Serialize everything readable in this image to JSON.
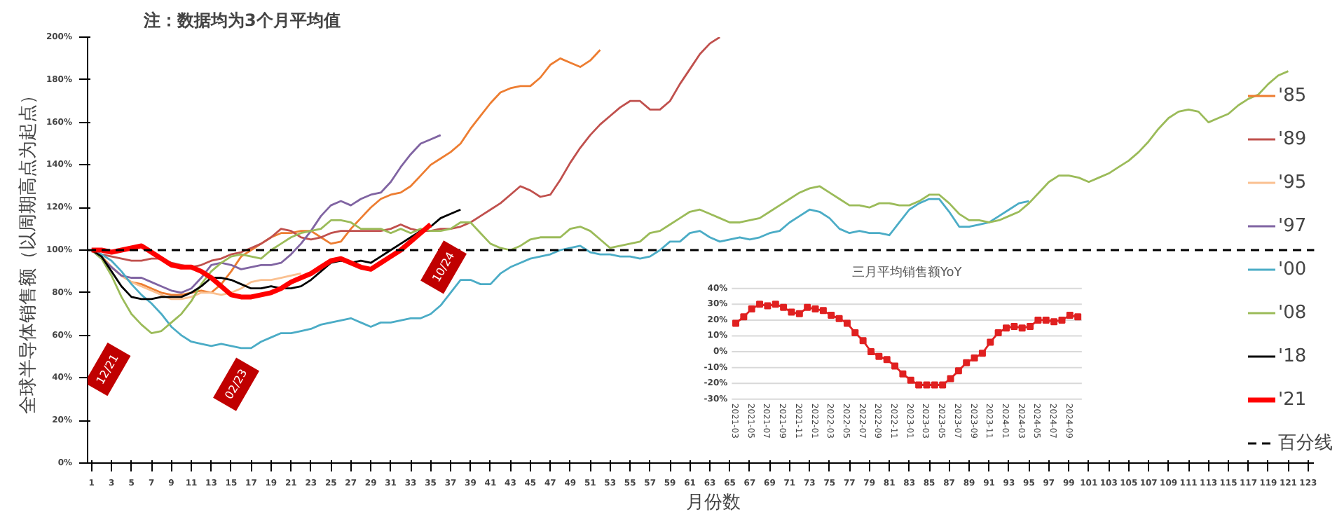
{
  "chart_data": [
    {
      "type": "line",
      "title": "注：数据均为3个月平均值",
      "xlabel": "月份数",
      "ylabel": "全球半导体销售额（以周期高点为起点）",
      "series": [
        {
          "name": "'85",
          "color": "#ed7d31",
          "x": [
            1,
            2,
            3,
            4,
            5,
            6,
            7,
            8,
            9,
            10,
            11,
            12,
            13,
            14,
            15,
            16,
            17,
            18,
            19,
            20,
            21,
            22,
            23,
            24,
            25,
            26,
            27,
            28,
            29,
            30,
            31,
            32,
            33,
            34,
            35,
            36,
            37,
            38,
            39,
            40,
            41,
            42,
            43,
            44,
            45,
            46,
            47,
            48,
            49,
            50,
            51,
            52
          ],
          "values": [
            100,
            97,
            92,
            88,
            85,
            84,
            82,
            80,
            79,
            79,
            80,
            81,
            80,
            84,
            90,
            97,
            100,
            103,
            106,
            108,
            108,
            109,
            109,
            106,
            103,
            104,
            110,
            115,
            120,
            124,
            126,
            127,
            130,
            135,
            140,
            143,
            146,
            150,
            157,
            163,
            169,
            174,
            176,
            177,
            177,
            181,
            187,
            190,
            188,
            186,
            189,
            194
          ]
        },
        {
          "name": "'89",
          "color": "#c0504d",
          "x": [
            1,
            2,
            3,
            4,
            5,
            6,
            7,
            8,
            9,
            10,
            11,
            12,
            13,
            14,
            15,
            16,
            17,
            18,
            19,
            20,
            21,
            22,
            23,
            24,
            25,
            26,
            27,
            28,
            29,
            30,
            31,
            32,
            33,
            34,
            35,
            36,
            37,
            38,
            39,
            40,
            41,
            42,
            43,
            44,
            45,
            46,
            47,
            48,
            49,
            50,
            51,
            52,
            53,
            54,
            55,
            56,
            57,
            58,
            59,
            60,
            61,
            62,
            63,
            64
          ],
          "values": [
            100,
            98,
            97,
            96,
            95,
            95,
            96,
            96,
            94,
            93,
            92,
            93,
            95,
            96,
            98,
            99,
            101,
            103,
            106,
            110,
            109,
            106,
            105,
            106,
            108,
            109,
            109,
            109,
            109,
            109,
            110,
            112,
            110,
            109,
            109,
            110,
            110,
            111,
            113,
            116,
            119,
            122,
            126,
            130,
            128,
            125,
            126,
            133,
            141,
            148,
            154,
            159,
            163,
            167,
            170,
            170,
            166,
            166,
            170,
            178,
            185,
            192,
            197,
            200
          ]
        },
        {
          "name": "'95",
          "color": "#fac090",
          "x": [
            1,
            2,
            3,
            4,
            5,
            6,
            7,
            8,
            9,
            10,
            11,
            12,
            13,
            14,
            15,
            16,
            17,
            18,
            19,
            20,
            21,
            22
          ],
          "values": [
            100,
            96,
            92,
            88,
            85,
            83,
            81,
            79,
            77,
            77,
            78,
            80,
            80,
            79,
            80,
            82,
            85,
            86,
            86,
            87,
            88,
            89
          ]
        },
        {
          "name": "'97",
          "color": "#8064a2",
          "x": [
            1,
            2,
            3,
            4,
            5,
            6,
            7,
            8,
            9,
            10,
            11,
            12,
            13,
            14,
            15,
            16,
            17,
            18,
            19,
            20,
            21,
            22,
            23,
            24,
            25,
            26,
            27,
            28,
            29,
            30,
            31,
            32,
            33,
            34,
            35,
            36
          ],
          "values": [
            100,
            96,
            92,
            88,
            87,
            87,
            85,
            83,
            81,
            80,
            82,
            87,
            93,
            94,
            93,
            91,
            92,
            93,
            93,
            94,
            98,
            103,
            109,
            116,
            121,
            123,
            121,
            124,
            126,
            127,
            132,
            139,
            145,
            150,
            152,
            154
          ]
        },
        {
          "name": "'00",
          "color": "#4bacc6",
          "x": [
            1,
            2,
            3,
            4,
            5,
            6,
            7,
            8,
            9,
            10,
            11,
            12,
            13,
            14,
            15,
            16,
            17,
            18,
            19,
            20,
            21,
            22,
            23,
            24,
            25,
            26,
            27,
            28,
            29,
            30,
            31,
            32,
            33,
            34,
            35,
            36,
            37,
            38,
            39,
            40,
            41,
            42,
            43,
            44,
            45,
            46,
            47,
            48,
            49,
            50,
            51,
            52,
            53,
            54,
            55,
            56,
            57,
            58,
            59,
            60,
            61,
            62,
            63,
            64,
            65,
            66,
            67,
            68,
            69,
            70,
            71,
            72,
            73,
            74,
            75,
            76,
            77,
            78,
            79,
            80,
            81,
            82,
            83,
            84,
            85,
            86,
            87,
            88,
            89,
            90,
            91,
            92,
            93,
            94,
            95
          ],
          "values": [
            100,
            98,
            95,
            90,
            84,
            79,
            75,
            70,
            64,
            60,
            57,
            56,
            55,
            56,
            55,
            54,
            54,
            57,
            59,
            61,
            61,
            62,
            63,
            65,
            66,
            67,
            68,
            66,
            64,
            66,
            66,
            67,
            68,
            68,
            70,
            74,
            80,
            86,
            86,
            84,
            84,
            89,
            92,
            94,
            96,
            97,
            98,
            100,
            101,
            102,
            99,
            98,
            98,
            97,
            97,
            96,
            97,
            100,
            104,
            104,
            108,
            109,
            106,
            104,
            105,
            106,
            105,
            106,
            108,
            109,
            113,
            116,
            119,
            118,
            115,
            110,
            108,
            109,
            108,
            108,
            107,
            113,
            119,
            122,
            124,
            124,
            118,
            111,
            111,
            112,
            113,
            116,
            119,
            122,
            123
          ]
        },
        {
          "name": "'08",
          "color": "#9bbb59",
          "x": [
            1,
            2,
            3,
            4,
            5,
            6,
            7,
            8,
            9,
            10,
            11,
            12,
            13,
            14,
            15,
            16,
            17,
            18,
            19,
            20,
            21,
            22,
            23,
            24,
            25,
            26,
            27,
            28,
            29,
            30,
            31,
            32,
            33,
            34,
            35,
            36,
            37,
            38,
            39,
            40,
            41,
            42,
            43,
            44,
            45,
            46,
            47,
            48,
            49,
            50,
            51,
            52,
            53,
            54,
            55,
            56,
            57,
            58,
            59,
            60,
            61,
            62,
            63,
            64,
            65,
            66,
            67,
            68,
            69,
            70,
            71,
            72,
            73,
            74,
            75,
            76,
            77,
            78,
            79,
            80,
            81,
            82,
            83,
            84,
            85,
            86,
            87,
            88,
            89,
            90,
            91,
            92,
            93,
            94,
            95,
            96,
            97,
            98,
            99,
            100,
            101,
            102,
            103,
            104,
            105,
            106,
            107,
            108,
            109,
            110,
            111,
            112,
            113,
            114,
            115,
            116,
            117,
            118,
            119,
            120,
            121
          ],
          "values": [
            100,
            96,
            88,
            78,
            70,
            65,
            61,
            62,
            66,
            70,
            76,
            84,
            90,
            94,
            97,
            98,
            97,
            96,
            100,
            103,
            106,
            108,
            109,
            110,
            114,
            114,
            113,
            110,
            110,
            110,
            108,
            110,
            108,
            110,
            109,
            109,
            110,
            113,
            113,
            108,
            103,
            101,
            100,
            102,
            105,
            106,
            106,
            106,
            110,
            111,
            109,
            105,
            101,
            102,
            103,
            104,
            108,
            109,
            112,
            115,
            118,
            119,
            117,
            115,
            113,
            113,
            114,
            115,
            118,
            121,
            124,
            127,
            129,
            130,
            127,
            124,
            121,
            121,
            120,
            122,
            122,
            121,
            121,
            123,
            126,
            126,
            122,
            117,
            114,
            114,
            113,
            114,
            116,
            118,
            122,
            127,
            132,
            135,
            135,
            134,
            132,
            134,
            136,
            139,
            142,
            146,
            151,
            157,
            162,
            165,
            166,
            165,
            160,
            162,
            164,
            168,
            171,
            173,
            178,
            182,
            184
          ]
        },
        {
          "name": "'18",
          "color": "#000000",
          "x": [
            1,
            2,
            3,
            4,
            5,
            6,
            7,
            8,
            9,
            10,
            11,
            12,
            13,
            14,
            15,
            16,
            17,
            18,
            19,
            20,
            21,
            22,
            23,
            24,
            25,
            26,
            27,
            28,
            29,
            30,
            31,
            32,
            33,
            34,
            35,
            36,
            37,
            38
          ],
          "values": [
            100,
            97,
            90,
            83,
            78,
            77,
            77,
            78,
            78,
            78,
            80,
            83,
            87,
            87,
            86,
            84,
            82,
            82,
            83,
            82,
            82,
            83,
            86,
            90,
            94,
            95,
            94,
            95,
            94,
            97,
            100,
            103,
            106,
            109,
            111,
            115,
            117,
            119
          ]
        },
        {
          "name": "'21",
          "color": "#ff0000",
          "x": [
            1,
            2,
            3,
            4,
            5,
            6,
            7,
            8,
            9,
            10,
            11,
            12,
            13,
            14,
            15,
            16,
            17,
            18,
            19,
            20,
            21,
            22,
            23,
            24,
            25,
            26,
            27,
            28,
            29,
            30,
            31,
            32,
            33,
            34,
            35
          ],
          "values": [
            100,
            100,
            99,
            100,
            101,
            102,
            99,
            96,
            93,
            92,
            92,
            90,
            87,
            83,
            79,
            78,
            78,
            79,
            80,
            82,
            85,
            87,
            89,
            92,
            95,
            96,
            94,
            92,
            91,
            94,
            97,
            100,
            104,
            108,
            112
          ]
        }
      ],
      "ref_lines": [
        {
          "axis": "y",
          "value": 100,
          "label": "百分线",
          "color": "#000000",
          "line_style": "dashed"
        }
      ],
      "annotations": [
        {
          "text": "12/21",
          "x": 2.6,
          "y": 44
        },
        {
          "text": "02/23",
          "x": 15.5,
          "y": 37
        },
        {
          "text": "10/24",
          "x": 36.3,
          "y": 92
        }
      ],
      "xlim": [
        0.6,
        123.6
      ],
      "ylim": [
        0,
        200
      ],
      "xticks": [
        1,
        3,
        5,
        7,
        9,
        11,
        13,
        15,
        17,
        19,
        21,
        23,
        25,
        27,
        29,
        31,
        33,
        35,
        37,
        39,
        41,
        43,
        45,
        47,
        49,
        51,
        53,
        55,
        57,
        59,
        61,
        63,
        65,
        67,
        69,
        71,
        73,
        75,
        77,
        79,
        81,
        83,
        85,
        87,
        89,
        91,
        93,
        95,
        97,
        99,
        101,
        103,
        105,
        107,
        109,
        111,
        113,
        115,
        117,
        119,
        121,
        123
      ],
      "yticks": [
        {
          "value": 0,
          "label": "0%"
        },
        {
          "value": 20,
          "label": "20%"
        },
        {
          "value": 40,
          "label": "40%"
        },
        {
          "value": 60,
          "label": "60%"
        },
        {
          "value": 80,
          "label": "80%"
        },
        {
          "value": 100,
          "label": "100%"
        },
        {
          "value": 120,
          "label": "120%"
        },
        {
          "value": 140,
          "label": "140%"
        },
        {
          "value": 160,
          "label": "160%"
        },
        {
          "value": 180,
          "label": "180%"
        },
        {
          "value": 200,
          "label": "200%"
        }
      ],
      "grid": false,
      "legend": "right"
    },
    {
      "type": "line",
      "title": "三月平均销售额YoY",
      "categories": [
        "2021-03",
        null,
        "2021-05",
        null,
        "2021-07",
        null,
        "2021-09",
        null,
        "2021-11",
        null,
        "2022-01",
        null,
        "2022-03",
        null,
        "2022-05",
        null,
        "2022-07",
        null,
        "2022-09",
        null,
        "2022-11",
        null,
        "2023-01",
        null,
        "2023-03",
        null,
        "2023-05",
        null,
        "2023-07",
        null,
        "2023-09",
        null,
        "2023-11",
        null,
        "2024-01",
        null,
        "2024-03",
        null,
        "2024-05",
        null,
        "2024-07",
        null,
        "2024-09",
        null
      ],
      "series": [
        {
          "color": "#e02020",
          "values": [
            18,
            22,
            27,
            30,
            29,
            30,
            28,
            25,
            24,
            28,
            27,
            26,
            23,
            21,
            18,
            12,
            7,
            0,
            -3,
            -5,
            -9,
            -14,
            -18,
            -21,
            -21,
            -21,
            -21,
            -17,
            -12,
            -7,
            -4,
            -1,
            6,
            12,
            15,
            16,
            15,
            16,
            20,
            20,
            19,
            20,
            23,
            22
          ]
        }
      ],
      "ylim": [
        -30,
        40
      ],
      "yticks": [
        {
          "value": -30,
          "label": "-30%"
        },
        {
          "value": -20,
          "label": "-20%"
        },
        {
          "value": -10,
          "label": "-10%"
        },
        {
          "value": 0,
          "label": "0%"
        },
        {
          "value": 10,
          "label": "10%"
        },
        {
          "value": 20,
          "label": "20%"
        },
        {
          "value": 30,
          "label": "30%"
        },
        {
          "value": 40,
          "label": "40%"
        }
      ],
      "grid": "y",
      "marker": "square"
    }
  ]
}
